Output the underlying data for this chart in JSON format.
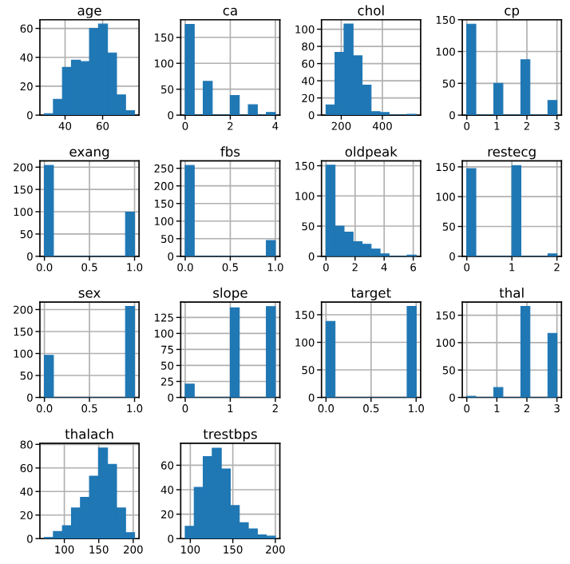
{
  "chart_data": [
    {
      "type": "histogram",
      "title": "age",
      "bins": [
        29,
        33.8,
        38.6,
        43.4,
        48.2,
        53,
        57.8,
        62.6,
        67.4,
        72.2,
        77
      ],
      "values": [
        1,
        11,
        33,
        38,
        37,
        60,
        63,
        43,
        14,
        3
      ],
      "color": "#1f77b4",
      "xlim": [
        26.6,
        79.4
      ],
      "ylim": [
        0,
        66
      ],
      "xticks": [
        40,
        60
      ],
      "yticks": [
        0,
        20,
        40,
        60
      ],
      "grid": true
    },
    {
      "type": "histogram",
      "title": "ca",
      "bins": [
        0,
        0.4,
        0.8,
        1.2,
        1.6,
        2,
        2.4,
        2.8,
        3.2,
        3.6,
        4
      ],
      "values": [
        175,
        0,
        65,
        0,
        0,
        38,
        0,
        20,
        0,
        5
      ],
      "color": "#1f77b4",
      "xlim": [
        -0.2,
        4.2
      ],
      "ylim": [
        0,
        184
      ],
      "xticks": [
        0,
        2,
        4
      ],
      "yticks": [
        0,
        50,
        100,
        150
      ],
      "grid": true
    },
    {
      "type": "histogram",
      "title": "chol",
      "bins": [
        126,
        169.8,
        213.6,
        257.4,
        301.2,
        345,
        388.8,
        432.6,
        476.4,
        520.2,
        564
      ],
      "values": [
        12,
        73,
        106,
        69,
        35,
        4,
        3,
        0,
        0,
        1
      ],
      "color": "#1f77b4",
      "xlim": [
        104,
        586
      ],
      "ylim": [
        0,
        111
      ],
      "xticks": [
        200,
        400
      ],
      "yticks": [
        0,
        20,
        40,
        60,
        80,
        100
      ],
      "grid": true
    },
    {
      "type": "histogram",
      "title": "cp",
      "bins": [
        0,
        0.3,
        0.6,
        0.9,
        1.2,
        1.5,
        1.8,
        2.1,
        2.4,
        2.7,
        3
      ],
      "values": [
        143,
        0,
        0,
        50,
        0,
        0,
        87,
        0,
        0,
        23
      ],
      "color": "#1f77b4",
      "xlim": [
        -0.15,
        3.15
      ],
      "ylim": [
        0,
        150
      ],
      "xticks": [
        0,
        1,
        2,
        3
      ],
      "yticks": [
        0,
        50,
        100,
        150
      ],
      "grid": true
    },
    {
      "type": "histogram",
      "title": "exang",
      "bins": [
        0,
        0.1,
        0.2,
        0.3,
        0.4,
        0.5,
        0.6,
        0.7,
        0.8,
        0.9,
        1
      ],
      "values": [
        204,
        0,
        0,
        0,
        0,
        0,
        0,
        0,
        0,
        99
      ],
      "color": "#1f77b4",
      "xlim": [
        -0.05,
        1.05
      ],
      "ylim": [
        0,
        214
      ],
      "xticks": [
        {
          "value": 0,
          "label": "0.0"
        },
        {
          "value": 0.5,
          "label": "0.5"
        },
        {
          "value": 1,
          "label": "1.0"
        }
      ],
      "yticks": [
        0,
        50,
        100,
        150,
        200
      ],
      "grid": true
    },
    {
      "type": "histogram",
      "title": "fbs",
      "bins": [
        0,
        0.1,
        0.2,
        0.3,
        0.4,
        0.5,
        0.6,
        0.7,
        0.8,
        0.9,
        1
      ],
      "values": [
        258,
        0,
        0,
        0,
        0,
        0,
        0,
        0,
        0,
        45
      ],
      "color": "#1f77b4",
      "xlim": [
        -0.05,
        1.05
      ],
      "ylim": [
        0,
        271
      ],
      "xticks": [
        {
          "value": 0,
          "label": "0.0"
        },
        {
          "value": 0.5,
          "label": "0.5"
        },
        {
          "value": 1,
          "label": "1.0"
        }
      ],
      "yticks": [
        0,
        50,
        100,
        150,
        200,
        250
      ],
      "grid": true
    },
    {
      "type": "histogram",
      "title": "oldpeak",
      "bins": [
        0,
        0.62,
        1.24,
        1.86,
        2.48,
        3.1,
        3.72,
        4.34,
        4.96,
        5.58,
        6.2
      ],
      "values": [
        151,
        50,
        40,
        24,
        20,
        12,
        4,
        0,
        0,
        2
      ],
      "color": "#1f77b4",
      "xlim": [
        -0.31,
        6.51
      ],
      "ylim": [
        0,
        158
      ],
      "xticks": [
        0,
        2,
        4,
        6
      ],
      "yticks": [
        0,
        50,
        100,
        150
      ],
      "grid": true
    },
    {
      "type": "histogram",
      "title": "restecg",
      "bins": [
        0,
        0.2,
        0.4,
        0.6,
        0.8,
        1,
        1.2,
        1.4,
        1.6,
        1.8,
        2
      ],
      "values": [
        147,
        0,
        0,
        0,
        0,
        152,
        0,
        0,
        0,
        4
      ],
      "color": "#1f77b4",
      "xlim": [
        -0.1,
        2.1
      ],
      "ylim": [
        0,
        160
      ],
      "xticks": [
        0,
        1,
        2
      ],
      "yticks": [
        0,
        50,
        100,
        150
      ],
      "grid": true
    },
    {
      "type": "histogram",
      "title": "sex",
      "bins": [
        0,
        0.1,
        0.2,
        0.3,
        0.4,
        0.5,
        0.6,
        0.7,
        0.8,
        0.9,
        1
      ],
      "values": [
        96,
        0,
        0,
        0,
        0,
        0,
        0,
        0,
        0,
        207
      ],
      "color": "#1f77b4",
      "xlim": [
        -0.05,
        1.05
      ],
      "ylim": [
        0,
        217
      ],
      "xticks": [
        {
          "value": 0,
          "label": "0.0"
        },
        {
          "value": 0.5,
          "label": "0.5"
        },
        {
          "value": 1,
          "label": "1.0"
        }
      ],
      "yticks": [
        0,
        50,
        100,
        150,
        200
      ],
      "grid": true
    },
    {
      "type": "histogram",
      "title": "slope",
      "bins": [
        0,
        0.2,
        0.4,
        0.6,
        0.8,
        1,
        1.2,
        1.4,
        1.6,
        1.8,
        2
      ],
      "values": [
        21,
        0,
        0,
        0,
        0,
        140,
        0,
        0,
        0,
        142
      ],
      "color": "#1f77b4",
      "xlim": [
        -0.1,
        2.1
      ],
      "ylim": [
        0,
        149
      ],
      "xticks": [
        0,
        1,
        2
      ],
      "yticks": [
        0,
        25,
        50,
        75,
        100,
        125
      ],
      "grid": true
    },
    {
      "type": "histogram",
      "title": "target",
      "bins": [
        0,
        0.1,
        0.2,
        0.3,
        0.4,
        0.5,
        0.6,
        0.7,
        0.8,
        0.9,
        1
      ],
      "values": [
        138,
        0,
        0,
        0,
        0,
        0,
        0,
        0,
        0,
        165
      ],
      "color": "#1f77b4",
      "xlim": [
        -0.05,
        1.05
      ],
      "ylim": [
        0,
        173
      ],
      "xticks": [
        {
          "value": 0,
          "label": "0.0"
        },
        {
          "value": 0.5,
          "label": "0.5"
        },
        {
          "value": 1,
          "label": "1.0"
        }
      ],
      "yticks": [
        0,
        50,
        100,
        150
      ],
      "grid": true
    },
    {
      "type": "histogram",
      "title": "thal",
      "bins": [
        0,
        0.3,
        0.6,
        0.9,
        1.2,
        1.5,
        1.8,
        2.1,
        2.4,
        2.7,
        3
      ],
      "values": [
        2,
        0,
        0,
        18,
        0,
        0,
        166,
        0,
        0,
        117
      ],
      "color": "#1f77b4",
      "xlim": [
        -0.15,
        3.15
      ],
      "ylim": [
        0,
        174
      ],
      "xticks": [
        0,
        1,
        2,
        3
      ],
      "yticks": [
        0,
        50,
        100,
        150
      ],
      "grid": true
    },
    {
      "type": "histogram",
      "title": "thalach",
      "bins": [
        71,
        84.1,
        97.2,
        110.3,
        123.4,
        136.5,
        149.6,
        162.7,
        175.8,
        188.9,
        202
      ],
      "values": [
        1,
        6,
        11,
        26,
        35,
        53,
        77,
        63,
        26,
        5
      ],
      "color": "#1f77b4",
      "xlim": [
        64.5,
        208.5
      ],
      "ylim": [
        0,
        81
      ],
      "xticks": [
        100,
        150,
        200
      ],
      "yticks": [
        0,
        20,
        40,
        60,
        80
      ],
      "grid": true
    },
    {
      "type": "histogram",
      "title": "trestbps",
      "bins": [
        94,
        104.6,
        115.2,
        125.8,
        136.4,
        147,
        157.6,
        168.2,
        178.8,
        189.4,
        200
      ],
      "values": [
        10,
        42,
        67,
        74,
        57,
        27,
        13,
        8,
        3,
        2
      ],
      "color": "#1f77b4",
      "xlim": [
        88.7,
        205.3
      ],
      "ylim": [
        0,
        78
      ],
      "xticks": [
        100,
        150,
        200
      ],
      "yticks": [
        0,
        20,
        40,
        60
      ],
      "grid": true
    }
  ]
}
